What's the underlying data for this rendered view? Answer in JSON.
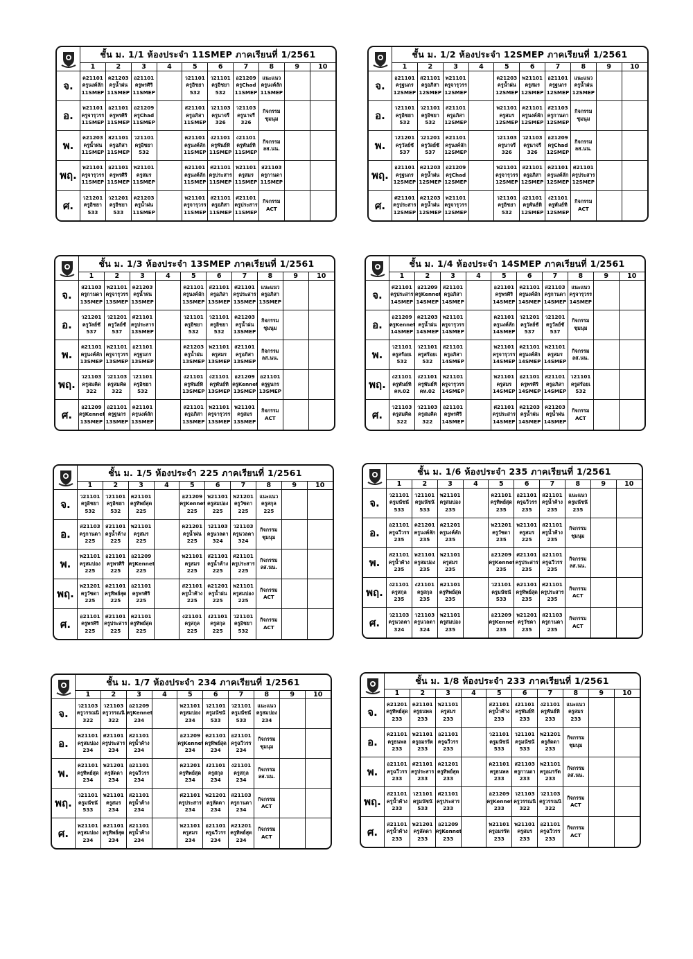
{
  "periods": [
    "1",
    "2",
    "3",
    "4",
    "5",
    "6",
    "7",
    "8",
    "9",
    "10"
  ],
  "days": [
    "จ.",
    "อ.",
    "พ.",
    "พฤ.",
    "ศ."
  ],
  "tables": [
    {
      "title": "ชั้น ม. 1/1 ห้องประจำ 11SMEP ภาคเรียนที่ 1/2561",
      "schedule": [
        [
          "ค21101\nครูนงค์ลัก\n11SMEP",
          "ค21203\nครูน้ำฝน\n11SMEP",
          "อ21101\nครูพรศิริ\n11SMEP",
          "",
          "ว21101\nครูอิชยา\n532",
          "ว21101\nครูอิชยา\n532",
          "อ21209\nครูChad\n11SMEP",
          "แนะแนว\nครูนงค์ลัก\n11SMEP"
        ],
        [
          "พ21101\nครูจารุวรร\n11SMEP",
          "อ21101\nครูพรศิริ\n11SMEP",
          "อ21209\nครูChad\n11SMEP",
          "",
          "ส21101\nครูอภิสา\n11SMEP",
          "ว21103\nครูนาจรี\n326",
          "ว21103\nครูนาจรี\n326",
          "กิจกรรม\nชุมนุม"
        ],
        [
          "ค21203\nครูน้ำฝน\n11SMEP",
          "ส21101\nครูอภิสา\n11SMEP",
          "ว21101\nครูอิชยา\n532",
          "",
          "ค21101\nครูนงค์ลัก\n11SMEP",
          "ง21101\nครูพันธ์ทิ\n11SMEP",
          "ง21101\nครูพันธ์ทิ\n11SMEP",
          "กิจกรรม\nลส.นน."
        ],
        [
          "พ21101\nครูจารุวรร\n11SMEP",
          "อ21101\nครูพรศิริ\n11SMEP",
          "พ21101\nครูสมร\n11SMEP",
          "",
          "ค21101\nครูนงค์ลัก\n11SMEP",
          "ศ21101\nครูประสาร\n11SMEP",
          "พ21101\nครูสมร\n11SMEP",
          "ส21103\nครูกานดา\n11SMEP"
        ],
        [
          "ว21201\nครูอิชยา\n533",
          "ว21201\nครูอิชยา\n533",
          "ค21203\nครูน้ำฝน\n11SMEP",
          "",
          "พ21101\nครูจารุวรร\n11SMEP",
          "ส21101\nครูอภิสา\n11SMEP",
          "ศ21101\nครูประสาร\n11SMEP",
          "กิจกรรม\nACT"
        ]
      ]
    },
    {
      "title": "ชั้น ม. 1/2 ห้องประจำ 12SMEP ภาคเรียนที่ 1/2561",
      "schedule": [
        [
          "อ21101\nครูฐนกร\n12SMEP",
          "ส21101\nครูอภิสา\n12SMEP",
          "พ21101\nครูจารุวรร\n12SMEP",
          "",
          "ค21203\nครูน้ำฝน\n12SMEP",
          "พ21101\nครูสมร\n12SMEP",
          "อ21101\nครูฐนกร\n12SMEP",
          "แนะแนว\nครูน้ำฝน\n12SMEP"
        ],
        [
          "ว21101\nครูอิชยา\n532",
          "ว21101\nครูอิชยา\n532",
          "ส21101\nครูอภิสา\n12SMEP",
          "",
          "พ21101\nครูสมร\n12SMEP",
          "ค21101\nครูนงค์ลัก\n12SMEP",
          "ส21103\nครูกานดา\n12SMEP",
          "กิจกรรม\nชุมนุม"
        ],
        [
          "ว21201\nครูวัลย์ชั\n537",
          "ว21201\nครูวัลย์ชั\n537",
          "ค21101\nครูนงค์ลัก\n12SMEP",
          "",
          "ว21103\nครูนาจรี\n326",
          "ว21103\nครูนาจรี\n326",
          "อ21209\nครูChad\n12SMEP",
          "กิจกรรม\nลส.นน."
        ],
        [
          "อ21101\nครูฐนกร\n12SMEP",
          "ค21203\nครูน้ำฝน\n12SMEP",
          "อ21209\nครูChad\n12SMEP",
          "",
          "พ21101\nครูจารุวรร\n12SMEP",
          "ส21101\nครูอภิสา\n12SMEP",
          "ค21101\nครูนงค์ลัก\n12SMEP",
          "ศ21101\nครูประสาร\n12SMEP"
        ],
        [
          "ศ21101\nครูประสาร\n12SMEP",
          "ค21203\nครูน้ำฝน\n12SMEP",
          "พ21101\nครูจารุวรร\n12SMEP",
          "",
          "ว21101\nครูอิชยา\n532",
          "ง21101\nครูพันธ์ทิ\n12SMEP",
          "ง21101\nครูพันธ์ทิ\n12SMEP",
          "กิจกรรม\nACT"
        ]
      ]
    },
    {
      "title": "ชั้น ม. 1/3 ห้องประจำ 13SMEP ภาคเรียนที่ 1/2561",
      "schedule": [
        [
          "ส21103\nครูกานดา\n13SMEP",
          "พ21101\nครูจารุวรร\n13SMEP",
          "ค21203\nครูน้ำฝน\n13SMEP",
          "",
          "ค21101\nครูนงค์ลัก\n13SMEP",
          "ส21101\nครูอภิสา\n13SMEP",
          "ศ21101\nครูประสาร\n13SMEP",
          "แนะแนว\nครูอภิสา\n13SMEP"
        ],
        [
          "ว21201\nครูวัลย์ชั\n537",
          "ว21201\nครูวัลย์ชั\n537",
          "ศ21101\nครูประสาร\n13SMEP",
          "",
          "ว21101\nครูอิชยา\n532",
          "ว21101\nครูอิชยา\n532",
          "ค21203\nครูน้ำฝน\n13SMEP",
          "กิจกรรม\nชุมนุม"
        ],
        [
          "ค21101\nครูนงค์ลัก\n13SMEP",
          "พ21101\nครูจารุวรร\n13SMEP",
          "อ21101\nครูฐนกร\n13SMEP",
          "",
          "ค21203\nครูน้ำฝน\n13SMEP",
          "พ21101\nครูสมร\n13SMEP",
          "ส21101\nครูอภิสา\n13SMEP",
          "กิจกรรม\nลส.นน."
        ],
        [
          "ว21103\nครูสมคิด\n322",
          "ว21103\nครูสมคิด\n322",
          "ว21101\nครูอิชยา\n532",
          "",
          "ง21101\nครูพันธ์ทิ\n13SMEP",
          "ง21101\nครูพันธ์ทิ\n13SMEP",
          "อ21209\nครูKennet\n13SMEP",
          "อ21101\nครูฐนกร\n13SMEP"
        ],
        [
          "อ21209\nครูKennet\n13SMEP",
          "อ21101\nครูฐนกร\n13SMEP",
          "ค21101\nครูนงค์ลัก\n13SMEP",
          "",
          "ส21101\nครูอภิสา\n13SMEP",
          "พ21101\nครูจารุวรร\n13SMEP",
          "พ21101\nครูสมร\n13SMEP",
          "กิจกรรม\nACT"
        ]
      ]
    },
    {
      "title": "ชั้น ม. 1/4 ห้องประจำ 14SMEP ภาคเรียนที่ 1/2561",
      "schedule": [
        [
          "ศ21101\nครูประสาร\n14SMEP",
          "อ21209\nครูKennet\n14SMEP",
          "ส21101\nครูอภิสา\n14SMEP",
          "",
          "อ21101\nครูพรศิริ\n14SMEP",
          "ค21101\nครูนงค์ลัก\n14SMEP",
          "ส21103\nครูกานดา\n14SMEP",
          "แนะแนว\nครูจารุวรร\n14SMEP"
        ],
        [
          "อ21209\nครูKennet\n14SMEP",
          "ค21203\nครูน้ำฝน\n14SMEP",
          "พ21101\nครูจารุวรร\n14SMEP",
          "",
          "ค21101\nครูนงค์ลัก\n14SMEP",
          "ว21201\nครูวัลย์ชั\n537",
          "ว21201\nครูวัลย์ชั\n537",
          "กิจกรรม\nชุมนุม"
        ],
        [
          "ว21101\nครูสร้อยเ\n532",
          "ว21101\nครูสร้อยเ\n532",
          "ส21101\nครูอภิสา\n14SMEP",
          "",
          "พ21101\nครูจารุวรร\n14SMEP",
          "ค21101\nครูนงค์ลัก\n14SMEP",
          "พ21101\nครูสมร\n14SMEP",
          "กิจกรรม\nลส.นน."
        ],
        [
          "ง21101\nครูพันธ์ทิ\nคห.02",
          "ง21101\nครูพันธ์ทิ\nคห.02",
          "พ21101\nครูจารุวรร\n14SMEP",
          "",
          "พ21101\nครูสมร\n14SMEP",
          "อ21101\nครูพรศิริ\n14SMEP",
          "ส21101\nครูอภิสา\n14SMEP",
          "ว21101\nครูสร้อยเ\n532"
        ],
        [
          "ว21103\nครูสมคิด\n322",
          "ว21103\nครูสมคิด\n322",
          "อ21101\nครูพรศิริ\n14SMEP",
          "",
          "ศ21101\nครูประสาร\n14SMEP",
          "ค21203\nครูน้ำฝน\n14SMEP",
          "ค21203\nครูน้ำฝน\n14SMEP",
          "กิจกรรม\nACT"
        ]
      ]
    },
    {
      "title": "ชั้น ม. 1/5 ห้องประจำ 225 ภาคเรียนที่ 1/2561",
      "schedule": [
        [
          "ว21101\nครูอิชยา\n532",
          "ว21101\nครูอิชยา\n532",
          "ค21101\nครูทิพย์สุด\n225",
          "",
          "อ21209\nครูKennet\n225",
          "พ21101\nครูสมปอง\n225",
          "พ21201\nครูวัชดา\n225",
          "แนะแนว\nครูสกุล\n225"
        ],
        [
          "ส21103\nครูกานดา\n225",
          "ส21101\nครูน้ำค้าง\n225",
          "พ21101\nครูสมร\n225",
          "",
          "ค21201\nครูน้ำฝน\n225",
          "ว21103\nครูนวลตา\n324",
          "ว21103\nครูนวลตา\n324",
          "กิจกรรม\nชุมนุม"
        ],
        [
          "พ21101\nครูสมปอง\n225",
          "อ21101\nครูพรศิริ\n225",
          "อ21209\nครูKennet\n225",
          "",
          "พ21101\nครูสมร\n225",
          "ส21101\nครูน้ำค้าง\n225",
          "ศ21101\nครูประสาร\n225",
          "กิจกรรม\nลส.นน."
        ],
        [
          "พ21201\nครูวัชดา\n225",
          "ค21101\nครูทิพย์สุด\n225",
          "อ21101\nครูพรศิริ\n225",
          "",
          "ส21101\nครูน้ำค้าง\n225",
          "ค21201\nครูน้ำฝน\n225",
          "พ21101\nครูสมปอง\n225",
          "กิจกรรม\nACT"
        ],
        [
          "อ21101\nครูพรศิริ\n225",
          "ศ21101\nครูประสาร\n225",
          "ค21101\nครูทิพย์สุด\n225",
          "",
          "ง21101\nครูสกุล\n225",
          "ง21101\nครูสกุล\n225",
          "ว21101\nครูอิชยา\n532",
          "กิจกรรม\nACT"
        ]
      ]
    },
    {
      "title": "ชั้น ม. 1/6 ห้องประจำ 235 ภาคเรียนที่ 1/2561",
      "schedule": [
        [
          "ว21101\nครูมนัชนั\n533",
          "ว21101\nครูมนัชนั\n533",
          "พ21101\nครูสมปอง\n235",
          "",
          "ค21101\nครูทิพย์สุด\n235",
          "อ21101\nครูฉวีวรร\n235",
          "ส21101\nครูน้ำค้าง\n235",
          "แนะแนว\nครูมนัชนั\n235"
        ],
        [
          "อ21101\nครูฉวีวรร\n235",
          "ค21201\nครูนงค์ลัก\n235",
          "ค21201\nครูนงค์ลัก\n235",
          "",
          "พ21201\nครูวัชดา\n235",
          "พ21101\nครูสมร\n225",
          "ส21101\nครูน้ำค้าง\n235",
          "กิจกรรม\nชุมนุม"
        ],
        [
          "ส21101\nครูน้ำค้าง\n235",
          "พ21101\nครูสมปอง\n235",
          "พ21101\nครูสมร\n235",
          "",
          "อ21209\nครูKennet\n235",
          "ศ21101\nครูประสาร\n235",
          "อ21101\nครูฉวีวรร\n235",
          "กิจกรรม\nลส.นน."
        ],
        [
          "ง21101\nครูสกุล\n235",
          "ง21101\nครูสกุล\n235",
          "ค21101\nครูทิพย์สุด\n235",
          "",
          "ว21101\nครูมนัชนั\n533",
          "ค21101\nครูทิพย์สุด\n235",
          "ศ21101\nครูประสาร\n235",
          "กิจกรรม\nACT"
        ],
        [
          "ว21103\nครูนวลตา\n324",
          "ว21103\nครูนวลตา\n324",
          "พ21101\nครูสมปอง\n235",
          "",
          "อ21209\nครูKennet\n235",
          "พ21201\nครูวัชดา\n235",
          "ส21103\nครูกานดา\n235",
          "กิจกรรม\nACT"
        ]
      ]
    },
    {
      "title": "ชั้น ม. 1/7 ห้องประจำ 234 ภาคเรียนที่ 1/2561",
      "schedule": [
        [
          "ว21103\nครูวรรณนิ\n322",
          "ว21103\nครูวรรณนิ\n322",
          "อ21209\nครูKennet\n234",
          "",
          "พ21101\nครูสมปอง\n234",
          "ว21101\nครูมนัชนั\n533",
          "ว21101\nครูมนัชนั\n533",
          "แนะแนว\nครูสมปอง\n234"
        ],
        [
          "พ21101\nครูสมปอง\n234",
          "ศ21101\nครูประสาร\n234",
          "ส21101\nครูน้ำค้าง\n234",
          "",
          "อ21209\nครูKennet\n234",
          "ค21101\nครูทิพย์สุด\n234",
          "อ21101\nครูฉวีวรร\n234",
          "กิจกรรม\nชุมนุม"
        ],
        [
          "ค21101\nครูทิพย์สุด\n234",
          "พ21201\nครูลัดดา\n234",
          "อ21101\nครูฉวีวรร\n234",
          "",
          "ค21201\nครูทิพย์สุด\n234",
          "ง21101\nครูสกุล\n234",
          "ง21101\nครูสกุล\n234",
          "กิจกรรม\nลส.นน."
        ],
        [
          "ว21101\nครูมนัชนั\n533",
          "พ21101\nครูสมร\n234",
          "ส21101\nครูน้ำค้าง\n234",
          "",
          "ศ21101\nครูประสาร\n234",
          "พ21201\nครูลัดดา\n234",
          "ส21103\nครูกานดา\n234",
          "กิจกรรม\nACT"
        ],
        [
          "พ21101\nครูสมปอง\n234",
          "ค21101\nครูทิพย์สุด\n234",
          "ส21101\nครูน้ำค้าง\n234",
          "",
          "พ21101\nครูสมร\n234",
          "อ21101\nครูฉวีวรร\n234",
          "ค21201\nครูทิพย์สุด\n234",
          "กิจกรรม\nACT"
        ]
      ]
    },
    {
      "title": "ชั้น ม. 1/8 ห้องประจำ 233 ภาคเรียนที่ 1/2561",
      "schedule": [
        [
          "ค21201\nครูทิพย์สุด\n233",
          "ค21101\nครูธนพล\n233",
          "พ21101\nครูสมร\n233",
          "",
          "ส21101\nครูน้ำค้าง\n233",
          "ง21101\nครูพันธ์ทิ\n233",
          "ง21101\nครูพันธ์ทิ\n233",
          "แนะแนว\nครูสมร\n233"
        ],
        [
          "ค21101\nครูธนพล\n233",
          "พ21101\nครูอมรรัต\n233",
          "อ21101\nครูฉวีวรร\n233",
          "",
          "ว21101\nครูมนัชนั\n533",
          "ว21101\nครูมนัชนั\n533",
          "พ21201\nครูลัดดา\n233",
          "กิจกรรม\nชุมนุม"
        ],
        [
          "อ21101\nครูฉวีวรร\n233",
          "ศ21101\nครูประสาร\n233",
          "ค21201\nครูทิพย์สุด\n233",
          "",
          "ค21101\nครูธนพล\n233",
          "ส21103\nครูกานดา\n233",
          "พ21101\nครูอมรรัต\n233",
          "กิจกรรม\nลส.นน."
        ],
        [
          "ส21101\nครูน้ำค้าง\n233",
          "ว21101\nครูมนัชนั\n533",
          "ศ21101\nครูประสาร\n233",
          "",
          "อ21209\nครูKennet\n233",
          "ว21103\nครูวรรณนิ\n322",
          "ว21103\nครูวรรณนิ\n322",
          "กิจกรรม\nACT"
        ],
        [
          "ส21101\nครูน้ำค้าง\n233",
          "พ21201\nครูลัดดา\n233",
          "อ21209\nครูKennet\n233",
          "",
          "พ21101\nครูอมรรัต\n233",
          "พ21101\nครูสมร\n233",
          "อ21101\nครูฉวีวรร\n233",
          "กิจกรรม\nACT"
        ]
      ]
    }
  ]
}
